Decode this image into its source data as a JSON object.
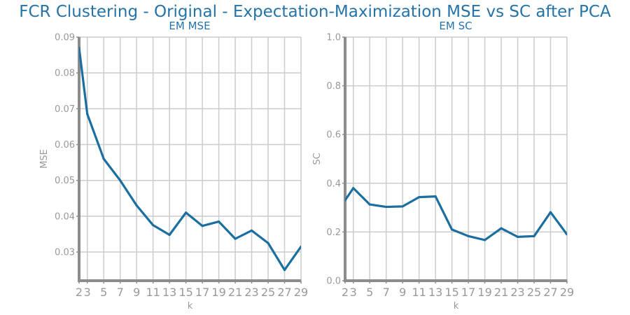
{
  "figure_title": "FCR Clustering - Original - Expectation-Maximization MSE vs SC after PCA",
  "colors": {
    "line": "#1a6fa0",
    "title": "#2574a9",
    "grid": "#cccccc",
    "axis": "#8c8c8c",
    "tick_text": "#999999"
  },
  "chart_data": [
    {
      "type": "line",
      "title": "EM MSE",
      "xlabel": "k",
      "ylabel": "MSE",
      "grid": true,
      "xlim": [
        2,
        29
      ],
      "ylim": [
        0.022,
        0.09
      ],
      "x_ticks": [
        2,
        3,
        5,
        7,
        9,
        11,
        13,
        15,
        17,
        19,
        21,
        23,
        25,
        27,
        29
      ],
      "y_ticks": [
        "0.03",
        "0.04",
        "0.05",
        "0.06",
        "0.07",
        "0.08",
        "0.09"
      ],
      "x": [
        2,
        3,
        5,
        7,
        9,
        11,
        13,
        15,
        17,
        19,
        21,
        23,
        25,
        27,
        29
      ],
      "values": [
        0.087,
        0.0685,
        0.056,
        0.05,
        0.043,
        0.0375,
        0.0348,
        0.041,
        0.0373,
        0.0385,
        0.0337,
        0.036,
        0.0325,
        0.025,
        0.0315
      ]
    },
    {
      "type": "line",
      "title": "EM SC",
      "xlabel": "k",
      "ylabel": "SC",
      "grid": true,
      "xlim": [
        2,
        29
      ],
      "ylim": [
        0.0,
        1.0
      ],
      "x_ticks": [
        2,
        3,
        5,
        7,
        9,
        11,
        13,
        15,
        17,
        19,
        21,
        23,
        25,
        27,
        29
      ],
      "y_ticks": [
        "0.0",
        "0.2",
        "0.4",
        "0.6",
        "0.8",
        "1.0"
      ],
      "x": [
        2,
        3,
        5,
        7,
        9,
        11,
        13,
        15,
        17,
        19,
        21,
        23,
        25,
        27,
        29
      ],
      "values": [
        0.33,
        0.38,
        0.313,
        0.303,
        0.305,
        0.343,
        0.346,
        0.21,
        0.183,
        0.167,
        0.215,
        0.18,
        0.183,
        0.281,
        0.19
      ]
    }
  ]
}
